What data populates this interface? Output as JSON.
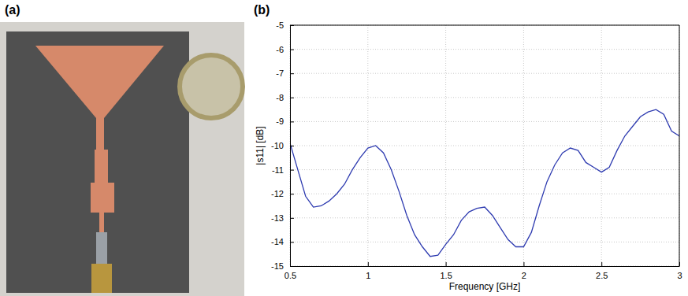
{
  "photo": {
    "panel_label": "(a)"
  },
  "chart_data": {
    "type": "line",
    "panel_label": "(b)",
    "x_label": "Frequency [GHz]",
    "y_label": "|s11| [dB]",
    "color": "#2e3bb0",
    "grid": true,
    "xlim": [
      0.5,
      3
    ],
    "xticks": [
      0.5,
      1,
      1.5,
      2,
      2.5,
      3
    ],
    "ylim": [
      -15,
      -5
    ],
    "yticks": [
      -15,
      -14,
      -13,
      -12,
      -11,
      -10,
      -9,
      -8,
      -7,
      -6,
      -5
    ],
    "x": [
      0.5,
      0.55,
      0.6,
      0.65,
      0.7,
      0.75,
      0.8,
      0.85,
      0.9,
      0.95,
      1.0,
      1.05,
      1.1,
      1.15,
      1.2,
      1.25,
      1.3,
      1.35,
      1.4,
      1.45,
      1.5,
      1.55,
      1.6,
      1.65,
      1.7,
      1.75,
      1.8,
      1.85,
      1.9,
      1.95,
      2.0,
      2.05,
      2.1,
      2.15,
      2.2,
      2.25,
      2.3,
      2.35,
      2.4,
      2.45,
      2.5,
      2.55,
      2.6,
      2.65,
      2.7,
      2.75,
      2.8,
      2.85,
      2.9,
      2.95,
      3.0
    ],
    "values": [
      -9.9,
      -11.0,
      -12.1,
      -12.55,
      -12.5,
      -12.3,
      -12.0,
      -11.6,
      -11.0,
      -10.5,
      -10.1,
      -10.0,
      -10.3,
      -11.0,
      -11.9,
      -12.9,
      -13.7,
      -14.2,
      -14.6,
      -14.55,
      -14.1,
      -13.7,
      -13.1,
      -12.75,
      -12.6,
      -12.55,
      -12.9,
      -13.4,
      -13.9,
      -14.2,
      -14.2,
      -13.6,
      -12.5,
      -11.5,
      -10.8,
      -10.3,
      -10.1,
      -10.2,
      -10.7,
      -10.9,
      -11.1,
      -10.9,
      -10.2,
      -9.6,
      -9.2,
      -8.8,
      -8.6,
      -8.5,
      -8.7,
      -9.4,
      -9.6
    ]
  }
}
